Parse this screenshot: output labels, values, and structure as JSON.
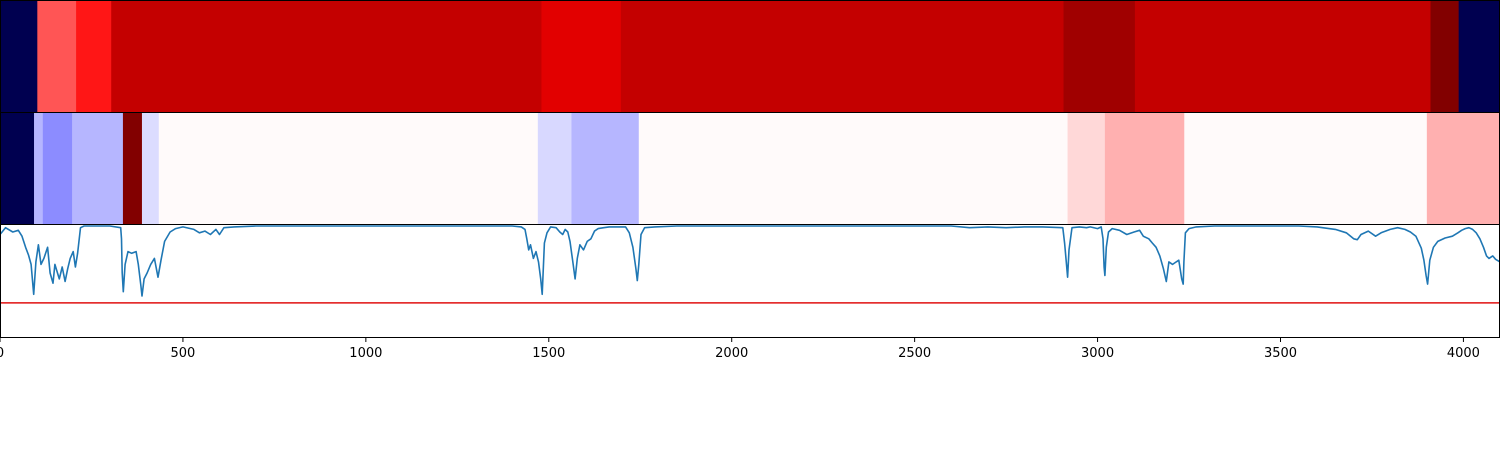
{
  "chart_data": {
    "type": "heatmap",
    "x_range": [
      0,
      4100
    ],
    "x_ticks": [
      0,
      500,
      1000,
      1500,
      2000,
      2500,
      3000,
      3500,
      4000
    ],
    "panels": [
      {
        "name": "",
        "type": "heatmap",
        "segments": [
          {
            "x0": 0,
            "x1": 102,
            "color": "#000050"
          },
          {
            "x0": 102,
            "x1": 208,
            "color": "#ff5555"
          },
          {
            "x0": 208,
            "x1": 304,
            "color": "#ff1616"
          },
          {
            "x0": 304,
            "x1": 1480,
            "color": "#c40000"
          },
          {
            "x0": 1480,
            "x1": 1697,
            "color": "#e20000"
          },
          {
            "x0": 1697,
            "x1": 2907,
            "color": "#c40000"
          },
          {
            "x0": 2907,
            "x1": 3102,
            "color": "#a00000"
          },
          {
            "x0": 3102,
            "x1": 3910,
            "color": "#c40000"
          },
          {
            "x0": 3910,
            "x1": 3987,
            "color": "#820000"
          },
          {
            "x0": 3987,
            "x1": 4100,
            "color": "#000050"
          }
        ]
      },
      {
        "name": "",
        "type": "heatmap",
        "segments": [
          {
            "x0": 0,
            "x1": 93,
            "color": "#000050"
          },
          {
            "x0": 93,
            "x1": 117,
            "color": "#b6b6ff"
          },
          {
            "x0": 117,
            "x1": 197,
            "color": "#8c8cff"
          },
          {
            "x0": 197,
            "x1": 336,
            "color": "#b6b6ff"
          },
          {
            "x0": 336,
            "x1": 388,
            "color": "#820000"
          },
          {
            "x0": 388,
            "x1": 434,
            "color": "#dcdcff"
          },
          {
            "x0": 434,
            "x1": 1470,
            "color": "#fffafa"
          },
          {
            "x0": 1470,
            "x1": 1562,
            "color": "#d8d8ff"
          },
          {
            "x0": 1562,
            "x1": 1746,
            "color": "#b6b6ff"
          },
          {
            "x0": 1746,
            "x1": 2918,
            "color": "#fffafa"
          },
          {
            "x0": 2918,
            "x1": 3020,
            "color": "#ffd8d8"
          },
          {
            "x0": 3020,
            "x1": 3237,
            "color": "#ffb0b0"
          },
          {
            "x0": 3237,
            "x1": 3900,
            "color": "#fffafa"
          },
          {
            "x0": 3900,
            "x1": 4100,
            "color": "#ffb0b0"
          }
        ]
      },
      {
        "name": "",
        "type": "line",
        "ylim": [
          -0.3,
          1.0
        ],
        "threshold": {
          "value": 0.1,
          "color": "#e01010"
        },
        "series_color": "#1f77b4",
        "series": [
          [
            0,
            0.9
          ],
          [
            15,
            0.98
          ],
          [
            35,
            0.93
          ],
          [
            50,
            0.95
          ],
          [
            60,
            0.88
          ],
          [
            70,
            0.75
          ],
          [
            78,
            0.66
          ],
          [
            85,
            0.55
          ],
          [
            92,
            0.2
          ],
          [
            98,
            0.58
          ],
          [
            105,
            0.78
          ],
          [
            112,
            0.55
          ],
          [
            120,
            0.62
          ],
          [
            130,
            0.75
          ],
          [
            137,
            0.45
          ],
          [
            145,
            0.33
          ],
          [
            150,
            0.55
          ],
          [
            155,
            0.48
          ],
          [
            162,
            0.38
          ],
          [
            170,
            0.52
          ],
          [
            178,
            0.35
          ],
          [
            185,
            0.5
          ],
          [
            192,
            0.62
          ],
          [
            200,
            0.7
          ],
          [
            206,
            0.52
          ],
          [
            212,
            0.68
          ],
          [
            220,
            0.98
          ],
          [
            230,
            1.0
          ],
          [
            300,
            1.0
          ],
          [
            330,
            0.98
          ],
          [
            332,
            0.85
          ],
          [
            334,
            0.45
          ],
          [
            337,
            0.23
          ],
          [
            342,
            0.55
          ],
          [
            350,
            0.7
          ],
          [
            360,
            0.68
          ],
          [
            372,
            0.7
          ],
          [
            378,
            0.55
          ],
          [
            385,
            0.3
          ],
          [
            388,
            0.18
          ],
          [
            394,
            0.38
          ],
          [
            402,
            0.45
          ],
          [
            412,
            0.55
          ],
          [
            422,
            0.62
          ],
          [
            432,
            0.4
          ],
          [
            440,
            0.6
          ],
          [
            450,
            0.82
          ],
          [
            465,
            0.93
          ],
          [
            480,
            0.97
          ],
          [
            500,
            0.99
          ],
          [
            530,
            0.96
          ],
          [
            545,
            0.92
          ],
          [
            560,
            0.94
          ],
          [
            575,
            0.9
          ],
          [
            590,
            0.96
          ],
          [
            600,
            0.9
          ],
          [
            612,
            0.98
          ],
          [
            640,
            0.99
          ],
          [
            700,
            1.0
          ],
          [
            1400,
            1.0
          ],
          [
            1425,
            0.99
          ],
          [
            1435,
            0.96
          ],
          [
            1440,
            0.85
          ],
          [
            1445,
            0.72
          ],
          [
            1450,
            0.78
          ],
          [
            1458,
            0.62
          ],
          [
            1465,
            0.7
          ],
          [
            1472,
            0.58
          ],
          [
            1478,
            0.38
          ],
          [
            1482,
            0.2
          ],
          [
            1488,
            0.8
          ],
          [
            1495,
            0.92
          ],
          [
            1505,
            0.99
          ],
          [
            1520,
            0.98
          ],
          [
            1530,
            0.93
          ],
          [
            1538,
            0.9
          ],
          [
            1545,
            0.96
          ],
          [
            1552,
            0.93
          ],
          [
            1558,
            0.82
          ],
          [
            1565,
            0.6
          ],
          [
            1572,
            0.38
          ],
          [
            1578,
            0.62
          ],
          [
            1585,
            0.78
          ],
          [
            1595,
            0.72
          ],
          [
            1605,
            0.82
          ],
          [
            1615,
            0.85
          ],
          [
            1625,
            0.94
          ],
          [
            1635,
            0.97
          ],
          [
            1650,
            0.98
          ],
          [
            1665,
            0.99
          ],
          [
            1690,
            0.99
          ],
          [
            1710,
            0.99
          ],
          [
            1720,
            0.92
          ],
          [
            1730,
            0.75
          ],
          [
            1738,
            0.5
          ],
          [
            1742,
            0.36
          ],
          [
            1746,
            0.55
          ],
          [
            1752,
            0.9
          ],
          [
            1762,
            0.98
          ],
          [
            1790,
            0.99
          ],
          [
            1850,
            1.0
          ],
          [
            2600,
            1.0
          ],
          [
            2650,
            0.98
          ],
          [
            2700,
            0.99
          ],
          [
            2750,
            0.98
          ],
          [
            2800,
            0.99
          ],
          [
            2850,
            0.99
          ],
          [
            2905,
            0.98
          ],
          [
            2910,
            0.8
          ],
          [
            2915,
            0.55
          ],
          [
            2918,
            0.4
          ],
          [
            2922,
            0.72
          ],
          [
            2930,
            0.98
          ],
          [
            2950,
            0.99
          ],
          [
            2970,
            0.98
          ],
          [
            2980,
            0.99
          ],
          [
            3000,
            0.97
          ],
          [
            3010,
            0.99
          ],
          [
            3015,
            0.85
          ],
          [
            3018,
            0.52
          ],
          [
            3020,
            0.42
          ],
          [
            3024,
            0.75
          ],
          [
            3030,
            0.93
          ],
          [
            3040,
            0.97
          ],
          [
            3060,
            0.95
          ],
          [
            3080,
            0.9
          ],
          [
            3100,
            0.93
          ],
          [
            3115,
            0.95
          ],
          [
            3125,
            0.88
          ],
          [
            3140,
            0.85
          ],
          [
            3150,
            0.8
          ],
          [
            3160,
            0.75
          ],
          [
            3170,
            0.65
          ],
          [
            3180,
            0.5
          ],
          [
            3188,
            0.35
          ],
          [
            3195,
            0.58
          ],
          [
            3205,
            0.55
          ],
          [
            3215,
            0.58
          ],
          [
            3222,
            0.6
          ],
          [
            3230,
            0.38
          ],
          [
            3234,
            0.32
          ],
          [
            3236,
            0.58
          ],
          [
            3240,
            0.92
          ],
          [
            3250,
            0.97
          ],
          [
            3270,
            0.99
          ],
          [
            3320,
            1.0
          ],
          [
            3550,
            1.0
          ],
          [
            3600,
            0.99
          ],
          [
            3650,
            0.96
          ],
          [
            3680,
            0.92
          ],
          [
            3700,
            0.85
          ],
          [
            3710,
            0.84
          ],
          [
            3720,
            0.9
          ],
          [
            3740,
            0.94
          ],
          [
            3760,
            0.88
          ],
          [
            3775,
            0.92
          ],
          [
            3800,
            0.96
          ],
          [
            3820,
            0.98
          ],
          [
            3840,
            0.96
          ],
          [
            3855,
            0.93
          ],
          [
            3870,
            0.88
          ],
          [
            3885,
            0.74
          ],
          [
            3892,
            0.6
          ],
          [
            3898,
            0.42
          ],
          [
            3902,
            0.32
          ],
          [
            3908,
            0.6
          ],
          [
            3918,
            0.75
          ],
          [
            3930,
            0.82
          ],
          [
            3950,
            0.86
          ],
          [
            3970,
            0.88
          ],
          [
            3985,
            0.92
          ],
          [
            3995,
            0.95
          ],
          [
            4005,
            0.97
          ],
          [
            4015,
            0.98
          ],
          [
            4025,
            0.96
          ],
          [
            4035,
            0.92
          ],
          [
            4045,
            0.85
          ],
          [
            4055,
            0.75
          ],
          [
            4063,
            0.65
          ],
          [
            4070,
            0.62
          ],
          [
            4080,
            0.65
          ],
          [
            4088,
            0.61
          ],
          [
            4100,
            0.58
          ]
        ]
      }
    ]
  }
}
